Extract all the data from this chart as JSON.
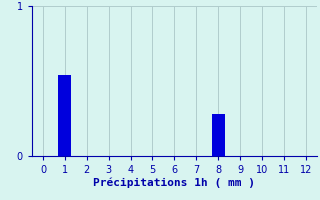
{
  "categories": [
    0,
    1,
    2,
    3,
    4,
    5,
    6,
    7,
    8,
    9,
    10,
    11,
    12
  ],
  "values": [
    0,
    0.54,
    0,
    0,
    0,
    0,
    0,
    0,
    0.28,
    0,
    0,
    0,
    0
  ],
  "bar_color": "#0000dd",
  "background_color": "#d8f4f0",
  "xlabel": "Précipitations 1h ( mm )",
  "xlim": [
    -0.5,
    12.5
  ],
  "ylim": [
    0,
    1.0
  ],
  "yticks": [
    0,
    1
  ],
  "xticks": [
    0,
    1,
    2,
    3,
    4,
    5,
    6,
    7,
    8,
    9,
    10,
    11,
    12
  ],
  "grid_color": "#b0cccc",
  "axis_color": "#0000aa",
  "tick_color": "#0000aa",
  "xlabel_fontsize": 8,
  "tick_fontsize": 7,
  "bar_width": 0.6
}
